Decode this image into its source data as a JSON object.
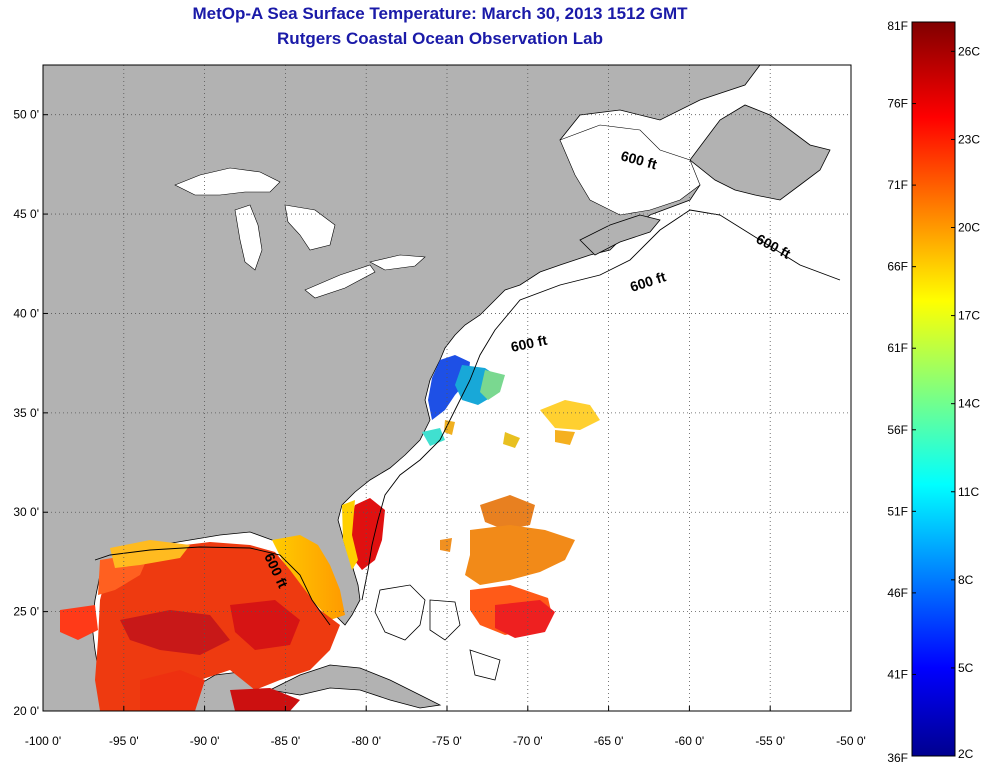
{
  "header": {
    "title_line1": "MetOp-A Sea Surface Temperature:  March 30, 2013 1512 GMT",
    "title_line2": "Rutgers Coastal Ocean Observation Lab"
  },
  "map": {
    "lon_range": [
      -100,
      -50
    ],
    "lat_range": [
      20,
      52.5
    ],
    "lon_ticks": [
      "-100 0'",
      "-95 0'",
      "-90 0'",
      "-85 0'",
      "-80 0'",
      "-75 0'",
      "-70 0'",
      "-65 0'",
      "-60 0'",
      "-55 0'",
      "-50 0'"
    ],
    "lat_ticks": [
      "20 0'",
      "25 0'",
      "30 0'",
      "35 0'",
      "40 0'",
      "45 0'",
      "50 0'"
    ],
    "contour_labels": [
      "600 ft",
      "600 ft",
      "600 ft",
      "600 ft",
      "600 ft"
    ],
    "colors": {
      "land": "#b2b2b2",
      "ocean_nodata": "#ffffff",
      "grid": "#555555"
    }
  },
  "colorbar": {
    "fahrenheit_labels": [
      "81F",
      "76F",
      "71F",
      "66F",
      "61F",
      "56F",
      "51F",
      "46F",
      "41F",
      "36F"
    ],
    "celsius_labels": [
      "26C",
      "23C",
      "20C",
      "17C",
      "14C",
      "11C",
      "8C",
      "5C",
      "2C"
    ],
    "range_f": [
      36,
      81
    ],
    "range_c": [
      2,
      27
    ]
  }
}
